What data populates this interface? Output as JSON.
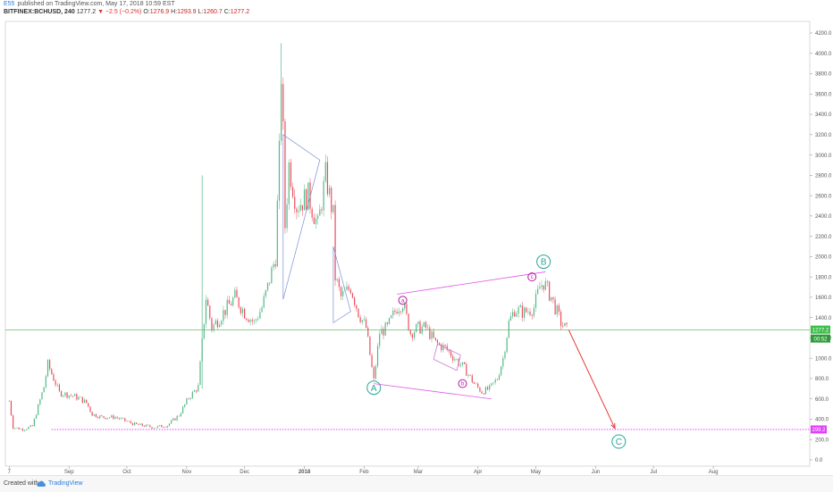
{
  "header": {
    "author": "E55",
    "published": "published on TradingView.com, May 17, 2018 10:59 EST",
    "symbol": "BITFINEX:BCHUSD, 240",
    "last_price": "1277.2",
    "change": "−2.5 (−0.2%)",
    "open_label": "O:",
    "open": "1276.9",
    "high_label": "H:",
    "high": "1293.9",
    "low_label": "L:",
    "low": "1260.7",
    "close_label": "C:",
    "close": "1277.2"
  },
  "footer": {
    "created_label": "Created with",
    "brand": "TradingView"
  },
  "colors": {
    "up": "#53b987",
    "down": "#eb4d5c",
    "price_line": "#4caf50",
    "target_line": "#e040fb",
    "wave_label": "#26a69a",
    "projection": "#e53935",
    "triangle": "#7b8fd6"
  },
  "chart_data": {
    "type": "line",
    "style": "candlestick",
    "series": [
      {
        "values": [
          [
            "2018-08-01",
            580
          ],
          [
            "2018-08-03",
            320
          ],
          [
            "2018-08-08",
            300
          ],
          [
            "2018-08-13",
            330
          ],
          [
            "2018-08-19",
            720
          ],
          [
            "2018-08-21",
            940
          ],
          [
            "2018-08-27",
            660
          ],
          [
            "2018-09-03",
            630
          ],
          [
            "2018-09-07",
            600
          ],
          [
            "2018-09-10",
            560
          ],
          [
            "2018-09-13",
            450
          ],
          [
            "2018-09-18",
            420
          ],
          [
            "2018-09-25",
            420
          ],
          [
            "2018-10-05",
            350
          ],
          [
            "2018-10-15",
            320
          ],
          [
            "2018-10-22",
            340
          ],
          [
            "2018-10-28",
            440
          ],
          [
            "2018-11-02",
            610
          ],
          [
            "2018-11-07",
            720
          ],
          [
            "2018-11-09",
            1150
          ],
          [
            "2018-11-11",
            1600
          ],
          [
            "2018-11-14",
            1300
          ],
          [
            "2018-11-20",
            1450
          ],
          [
            "2018-11-26",
            1600
          ],
          [
            "2018-12-01",
            1450
          ],
          [
            "2018-12-06",
            1350
          ],
          [
            "2018-12-10",
            1500
          ],
          [
            "2018-12-13",
            1700
          ],
          [
            "2018-12-17",
            2000
          ],
          [
            "2018-12-19",
            3000
          ],
          [
            "2018-12-20",
            3800
          ],
          [
            "2018-12-21",
            3200
          ],
          [
            "2018-12-22",
            2300
          ],
          [
            "2018-12-24",
            2900
          ],
          [
            "2018-12-28",
            2500
          ],
          [
            "2019-01-03",
            2600
          ],
          [
            "2019-01-08",
            2300
          ],
          [
            "2019-01-12",
            2800
          ],
          [
            "2019-01-16",
            2400
          ],
          [
            "2019-01-17",
            1800
          ],
          [
            "2019-01-20",
            1600
          ],
          [
            "2019-01-25",
            1700
          ],
          [
            "2019-01-29",
            1450
          ],
          [
            "2019-02-02",
            1300
          ],
          [
            "2019-02-05",
            900
          ],
          [
            "2019-02-06",
            780
          ],
          [
            "2019-02-09",
            1250
          ],
          [
            "2019-02-13",
            1300
          ],
          [
            "2019-02-18",
            1500
          ],
          [
            "2019-02-21",
            1550
          ],
          [
            "2019-02-25",
            1250
          ],
          [
            "2019-03-01",
            1300
          ],
          [
            "2019-03-05",
            1300
          ],
          [
            "2019-03-10",
            1150
          ],
          [
            "2019-03-15",
            1100
          ],
          [
            "2019-03-20",
            1000
          ],
          [
            "2019-03-25",
            900
          ],
          [
            "2019-03-30",
            750
          ],
          [
            "2019-04-03",
            670
          ],
          [
            "2019-04-07",
            700
          ],
          [
            "2019-04-11",
            800
          ],
          [
            "2019-04-14",
            1000
          ],
          [
            "2019-04-17",
            1350
          ],
          [
            "2019-04-20",
            1480
          ],
          [
            "2019-04-25",
            1450
          ],
          [
            "2019-04-30",
            1500
          ],
          [
            "2019-05-03",
            1700
          ],
          [
            "2019-05-05",
            1750
          ],
          [
            "2019-05-09",
            1600
          ],
          [
            "2019-05-12",
            1450
          ],
          [
            "2019-05-14",
            1350
          ],
          [
            "2019-05-17",
            1277.2
          ]
        ]
      }
    ],
    "y_axis": {
      "ticks": [
        "0.0",
        "200.0",
        "400.0",
        "600.0",
        "800.0",
        "1000.0",
        "1200.0",
        "1400.0",
        "1600.0",
        "1800.0",
        "2000.0",
        "2200.0",
        "2400.0",
        "2600.0",
        "2800.0",
        "3000.0",
        "3200.0",
        "3400.0",
        "3600.0",
        "3800.0",
        "4000.0",
        "4200.0"
      ],
      "ylim": [
        0,
        4200
      ]
    },
    "x_axis": {
      "ticks": [
        {
          "date": "2018-08-01",
          "label": "7"
        },
        {
          "date": "2018-09-01",
          "label": "Sep"
        },
        {
          "date": "2018-10-01",
          "label": "Oct"
        },
        {
          "date": "2018-11-01",
          "label": "Nov"
        },
        {
          "date": "2018-12-01",
          "label": "Dec"
        },
        {
          "date": "2019-01-01",
          "label": "2018"
        },
        {
          "date": "2019-02-01",
          "label": "Feb"
        },
        {
          "date": "2019-03-01",
          "label": "Mar"
        },
        {
          "date": "2019-04-01",
          "label": "Apr"
        },
        {
          "date": "2019-05-01",
          "label": "May"
        },
        {
          "date": "2019-06-01",
          "label": "Jun"
        },
        {
          "date": "2019-07-01",
          "label": "Jul"
        },
        {
          "date": "2019-08-01",
          "label": "Aug"
        }
      ],
      "xlim": [
        "2018-07-30",
        "2019-09-20"
      ]
    },
    "price_line": {
      "value": 1277.2,
      "label": "1277.2",
      "countdown": "00:52"
    },
    "target_line": {
      "value": 299.2,
      "label": "299.2"
    },
    "wave_labels": [
      {
        "text": "A",
        "date": "2019-02-06",
        "value": 710
      },
      {
        "text": "B",
        "date": "2019-05-05",
        "value": 1950
      },
      {
        "text": "C",
        "date": "2019-06-13",
        "value": 180
      },
      {
        "text": "a",
        "date": "2019-02-21",
        "value": 1570
      },
      {
        "text": "b",
        "date": "2019-03-24",
        "value": 750
      },
      {
        "text": "c",
        "date": "2019-04-29",
        "value": 1800
      }
    ],
    "channel": {
      "upper": [
        [
          "2019-02-18",
          1630
        ],
        [
          "2019-05-06",
          1850
        ]
      ],
      "lower": [
        [
          "2019-02-06",
          750
        ],
        [
          "2019-04-08",
          600
        ]
      ]
    },
    "small_channel": {
      "top": [
        [
          "2019-03-11",
          1140
        ],
        [
          "2019-03-23",
          1030
        ]
      ],
      "bottom": [
        [
          "2019-03-09",
          990
        ],
        [
          "2019-03-21",
          880
        ]
      ]
    },
    "triangles": [
      [
        [
          "2018-12-21",
          3200
        ],
        [
          "2019-01-09",
          2950
        ],
        [
          "2018-12-21",
          1580
        ]
      ],
      [
        [
          "2019-01-16",
          2100
        ],
        [
          "2019-01-25",
          1460
        ],
        [
          "2019-01-16",
          1350
        ]
      ]
    ],
    "projection": [
      [
        "2019-05-18",
        1280
      ],
      [
        "2019-06-11",
        310
      ]
    ]
  }
}
